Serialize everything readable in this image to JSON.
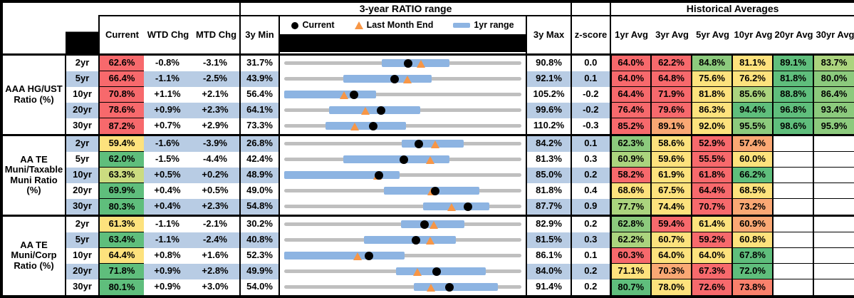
{
  "titles": {
    "range": "3-year RATIO range",
    "historical": "Historical Averages"
  },
  "legend": {
    "current": "Current",
    "last_month": "Last Month End",
    "range_1yr": "1yr range"
  },
  "columns": {
    "current": "Current",
    "wtd": "WTD Chg",
    "mtd": "MTD Chg",
    "min": "3y Min",
    "max": "3y Max",
    "z": "z-score",
    "avgs": [
      "1yr Avg",
      "3yr Avg",
      "5yr Avg",
      "10yr Avg",
      "20yr Avg",
      "30yr Avg"
    ]
  },
  "colors": {
    "red": "#F7696C",
    "orange": "#FAA874",
    "salmon": "#F9816C",
    "yellow": "#FDE27D",
    "yellowgreen": "#CBDC80",
    "green3": "#ABD47E",
    "green2": "#8CCA7D",
    "green": "#5FBE7C",
    "blank": "#FFFFFF",
    "stripe": "#B8CCE4",
    "bar_blue": "#8DB4E2",
    "track_gray": "#BFBFBF",
    "triangle_orange": "#F79646",
    "dot_black": "#000000"
  },
  "chart_data": {
    "type": "table",
    "title": "3-year RATIO range",
    "legend_position": "top",
    "groups": [
      {
        "label": "AAA HG/UST\nRatio (%)",
        "rows": [
          {
            "tenor": "2yr",
            "current": {
              "v": "62.6%",
              "bg": "red"
            },
            "wtd": "-0.8%",
            "mtd": "-3.1%",
            "min": "31.7%",
            "max": "90.8%",
            "z": "0.0",
            "chart": {
              "min": 31.7,
              "max": 90.8,
              "lo": 56.0,
              "hi": 72.8,
              "dot": 62.6,
              "tri": 65.7
            },
            "avgs": [
              {
                "v": "64.0%",
                "bg": "red"
              },
              {
                "v": "62.2%",
                "bg": "red"
              },
              {
                "v": "84.8%",
                "bg": "green2"
              },
              {
                "v": "81.1%",
                "bg": "yellow"
              },
              {
                "v": "89.1%",
                "bg": "green"
              },
              {
                "v": "83.7%",
                "bg": "green3"
              }
            ]
          },
          {
            "tenor": "5yr",
            "current": {
              "v": "66.4%",
              "bg": "red"
            },
            "wtd": "-1.1%",
            "mtd": "-2.5%",
            "min": "43.9%",
            "max": "92.1%",
            "z": "0.1",
            "chart": {
              "min": 43.9,
              "max": 92.1,
              "lo": 55.9,
              "hi": 73.8,
              "dot": 66.4,
              "tri": 68.9
            },
            "avgs": [
              {
                "v": "64.0%",
                "bg": "red"
              },
              {
                "v": "64.8%",
                "bg": "red"
              },
              {
                "v": "75.6%",
                "bg": "yellow"
              },
              {
                "v": "76.2%",
                "bg": "yellow"
              },
              {
                "v": "81.8%",
                "bg": "green"
              },
              {
                "v": "80.0%",
                "bg": "green2"
              }
            ]
          },
          {
            "tenor": "10yr",
            "current": {
              "v": "70.8%",
              "bg": "red"
            },
            "wtd": "+1.1%",
            "mtd": "+2.1%",
            "min": "56.4%",
            "max": "105.2%",
            "z": "-0.2",
            "chart": {
              "min": 56.4,
              "max": 105.2,
              "lo": 56.4,
              "hi": 75.3,
              "dot": 70.8,
              "tri": 68.7
            },
            "avgs": [
              {
                "v": "64.4%",
                "bg": "red"
              },
              {
                "v": "71.9%",
                "bg": "red"
              },
              {
                "v": "81.8%",
                "bg": "yellow"
              },
              {
                "v": "85.6%",
                "bg": "green3"
              },
              {
                "v": "88.8%",
                "bg": "green"
              },
              {
                "v": "86.4%",
                "bg": "green2"
              }
            ]
          },
          {
            "tenor": "20yr",
            "current": {
              "v": "78.6%",
              "bg": "red"
            },
            "wtd": "+0.9%",
            "mtd": "+2.3%",
            "min": "64.1%",
            "max": "99.6%",
            "z": "-0.2",
            "chart": {
              "min": 64.1,
              "max": 99.6,
              "lo": 70.8,
              "hi": 84.5,
              "dot": 78.6,
              "tri": 76.3
            },
            "avgs": [
              {
                "v": "76.4%",
                "bg": "red"
              },
              {
                "v": "79.6%",
                "bg": "red"
              },
              {
                "v": "86.3%",
                "bg": "yellow"
              },
              {
                "v": "94.4%",
                "bg": "green"
              },
              {
                "v": "96.8%",
                "bg": "green"
              },
              {
                "v": "93.4%",
                "bg": "green2"
              }
            ]
          },
          {
            "tenor": "30yr",
            "current": {
              "v": "87.2%",
              "bg": "red"
            },
            "wtd": "+0.7%",
            "mtd": "+2.9%",
            "min": "73.3%",
            "max": "110.2%",
            "z": "-0.3",
            "chart": {
              "min": 73.3,
              "max": 110.2,
              "lo": 79.7,
              "hi": 92.2,
              "dot": 87.2,
              "tri": 84.3
            },
            "avgs": [
              {
                "v": "85.2%",
                "bg": "red"
              },
              {
                "v": "89.1%",
                "bg": "orange"
              },
              {
                "v": "92.0%",
                "bg": "yellow"
              },
              {
                "v": "95.5%",
                "bg": "green2"
              },
              {
                "v": "98.6%",
                "bg": "green"
              },
              {
                "v": "95.9%",
                "bg": "green2"
              }
            ]
          }
        ]
      },
      {
        "label": "AA TE\nMuni/Taxable\nMuni Ratio\n(%)",
        "rows": [
          {
            "tenor": "2yr",
            "current": {
              "v": "59.4%",
              "bg": "yellow"
            },
            "wtd": "-1.6%",
            "mtd": "-3.9%",
            "min": "26.8%",
            "max": "84.2%",
            "z": "0.1",
            "chart": {
              "min": 26.8,
              "max": 84.2,
              "lo": 55.2,
              "hi": 70.2,
              "dot": 59.4,
              "tri": 63.3
            },
            "avgs": [
              {
                "v": "62.3%",
                "bg": "green2"
              },
              {
                "v": "58.6%",
                "bg": "yellow"
              },
              {
                "v": "52.9%",
                "bg": "red"
              },
              {
                "v": "57.4%",
                "bg": "orange"
              },
              {
                "v": "",
                "bg": "blank"
              },
              {
                "v": "",
                "bg": "blank"
              }
            ]
          },
          {
            "tenor": "5yr",
            "current": {
              "v": "62.0%",
              "bg": "green"
            },
            "wtd": "-1.5%",
            "mtd": "-4.4%",
            "min": "42.4%",
            "max": "81.3%",
            "z": "0.3",
            "chart": {
              "min": 42.4,
              "max": 81.3,
              "lo": 52.1,
              "hi": 69.5,
              "dot": 62.0,
              "tri": 66.4
            },
            "avgs": [
              {
                "v": "60.9%",
                "bg": "green3"
              },
              {
                "v": "59.6%",
                "bg": "yellow"
              },
              {
                "v": "55.5%",
                "bg": "red"
              },
              {
                "v": "60.0%",
                "bg": "yellow"
              },
              {
                "v": "",
                "bg": "blank"
              },
              {
                "v": "",
                "bg": "blank"
              }
            ]
          },
          {
            "tenor": "10yr",
            "current": {
              "v": "63.3%",
              "bg": "yellowgreen"
            },
            "wtd": "+0.5%",
            "mtd": "+0.2%",
            "min": "48.9%",
            "max": "85.0%",
            "z": "0.2",
            "chart": {
              "min": 48.9,
              "max": 85.0,
              "lo": 48.9,
              "hi": 66.5,
              "dot": 63.3,
              "tri": 63.1
            },
            "avgs": [
              {
                "v": "58.2%",
                "bg": "red"
              },
              {
                "v": "61.9%",
                "bg": "yellow"
              },
              {
                "v": "61.8%",
                "bg": "red"
              },
              {
                "v": "66.2%",
                "bg": "green"
              },
              {
                "v": "",
                "bg": "blank"
              },
              {
                "v": "",
                "bg": "blank"
              }
            ]
          },
          {
            "tenor": "20yr",
            "current": {
              "v": "69.9%",
              "bg": "green"
            },
            "wtd": "+0.4%",
            "mtd": "+0.5%",
            "min": "49.0%",
            "max": "81.8%",
            "z": "0.4",
            "chart": {
              "min": 49.0,
              "max": 81.8,
              "lo": 62.8,
              "hi": 76.0,
              "dot": 69.9,
              "tri": 69.4
            },
            "avgs": [
              {
                "v": "68.6%",
                "bg": "yellow"
              },
              {
                "v": "67.5%",
                "bg": "yellow"
              },
              {
                "v": "64.4%",
                "bg": "red"
              },
              {
                "v": "68.5%",
                "bg": "yellow"
              },
              {
                "v": "",
                "bg": "blank"
              },
              {
                "v": "",
                "bg": "blank"
              }
            ]
          },
          {
            "tenor": "30yr",
            "current": {
              "v": "80.3%",
              "bg": "green"
            },
            "wtd": "+0.4%",
            "mtd": "+2.3%",
            "min": "54.8%",
            "max": "87.7%",
            "z": "0.9",
            "chart": {
              "min": 54.8,
              "max": 87.7,
              "lo": 74.1,
              "hi": 83.3,
              "dot": 80.3,
              "tri": 78.0
            },
            "avgs": [
              {
                "v": "77.7%",
                "bg": "green3"
              },
              {
                "v": "74.4%",
                "bg": "yellow"
              },
              {
                "v": "70.7%",
                "bg": "red"
              },
              {
                "v": "73.2%",
                "bg": "orange"
              },
              {
                "v": "",
                "bg": "blank"
              },
              {
                "v": "",
                "bg": "blank"
              }
            ]
          }
        ]
      },
      {
        "label": "AA TE\nMuni/Corp\nRatio (%)",
        "rows": [
          {
            "tenor": "2yr",
            "current": {
              "v": "61.3%",
              "bg": "yellow"
            },
            "wtd": "-1.1%",
            "mtd": "-2.1%",
            "min": "30.2%",
            "max": "82.9%",
            "z": "0.2",
            "chart": {
              "min": 30.2,
              "max": 82.9,
              "lo": 56.1,
              "hi": 70.2,
              "dot": 61.3,
              "tri": 63.4
            },
            "avgs": [
              {
                "v": "62.8%",
                "bg": "green2"
              },
              {
                "v": "59.4%",
                "bg": "red"
              },
              {
                "v": "61.4%",
                "bg": "yellow"
              },
              {
                "v": "60.9%",
                "bg": "orange"
              },
              {
                "v": "",
                "bg": "blank"
              },
              {
                "v": "",
                "bg": "blank"
              }
            ]
          },
          {
            "tenor": "5yr",
            "current": {
              "v": "63.4%",
              "bg": "green"
            },
            "wtd": "-1.1%",
            "mtd": "-2.4%",
            "min": "40.8%",
            "max": "81.5%",
            "z": "0.3",
            "chart": {
              "min": 40.8,
              "max": 81.5,
              "lo": 54.5,
              "hi": 70.3,
              "dot": 63.4,
              "tri": 65.8
            },
            "avgs": [
              {
                "v": "62.2%",
                "bg": "green3"
              },
              {
                "v": "60.7%",
                "bg": "yellow"
              },
              {
                "v": "59.2%",
                "bg": "red"
              },
              {
                "v": "60.8%",
                "bg": "yellow"
              },
              {
                "v": "",
                "bg": "blank"
              },
              {
                "v": "",
                "bg": "blank"
              }
            ]
          },
          {
            "tenor": "10yr",
            "current": {
              "v": "64.4%",
              "bg": "yellow"
            },
            "wtd": "+0.8%",
            "mtd": "+1.6%",
            "min": "52.3%",
            "max": "86.1%",
            "z": "0.1",
            "chart": {
              "min": 52.3,
              "max": 86.1,
              "lo": 52.3,
              "hi": 69.4,
              "dot": 64.4,
              "tri": 62.8
            },
            "avgs": [
              {
                "v": "60.3%",
                "bg": "red"
              },
              {
                "v": "64.0%",
                "bg": "yellow"
              },
              {
                "v": "64.0%",
                "bg": "yellow"
              },
              {
                "v": "67.8%",
                "bg": "green"
              },
              {
                "v": "",
                "bg": "blank"
              },
              {
                "v": "",
                "bg": "blank"
              }
            ]
          },
          {
            "tenor": "20yr",
            "current": {
              "v": "71.8%",
              "bg": "green"
            },
            "wtd": "+0.9%",
            "mtd": "+2.8%",
            "min": "49.9%",
            "max": "84.0%",
            "z": "0.2",
            "chart": {
              "min": 49.9,
              "max": 84.0,
              "lo": 66.0,
              "hi": 78.9,
              "dot": 71.8,
              "tri": 69.0
            },
            "avgs": [
              {
                "v": "71.1%",
                "bg": "yellow"
              },
              {
                "v": "70.3%",
                "bg": "orange"
              },
              {
                "v": "67.3%",
                "bg": "red"
              },
              {
                "v": "72.0%",
                "bg": "green"
              },
              {
                "v": "",
                "bg": "blank"
              },
              {
                "v": "",
                "bg": "blank"
              }
            ]
          },
          {
            "tenor": "30yr",
            "current": {
              "v": "80.1%",
              "bg": "green"
            },
            "wtd": "+0.9%",
            "mtd": "+3.0%",
            "min": "54.0%",
            "max": "91.4%",
            "z": "0.2",
            "chart": {
              "min": 54.0,
              "max": 91.4,
              "lo": 74.4,
              "hi": 87.7,
              "dot": 80.1,
              "tri": 77.1
            },
            "avgs": [
              {
                "v": "80.7%",
                "bg": "green"
              },
              {
                "v": "78.0%",
                "bg": "yellow"
              },
              {
                "v": "72.6%",
                "bg": "red"
              },
              {
                "v": "73.8%",
                "bg": "salmon"
              },
              {
                "v": "",
                "bg": "blank"
              },
              {
                "v": "",
                "bg": "blank"
              }
            ]
          }
        ]
      }
    ]
  }
}
